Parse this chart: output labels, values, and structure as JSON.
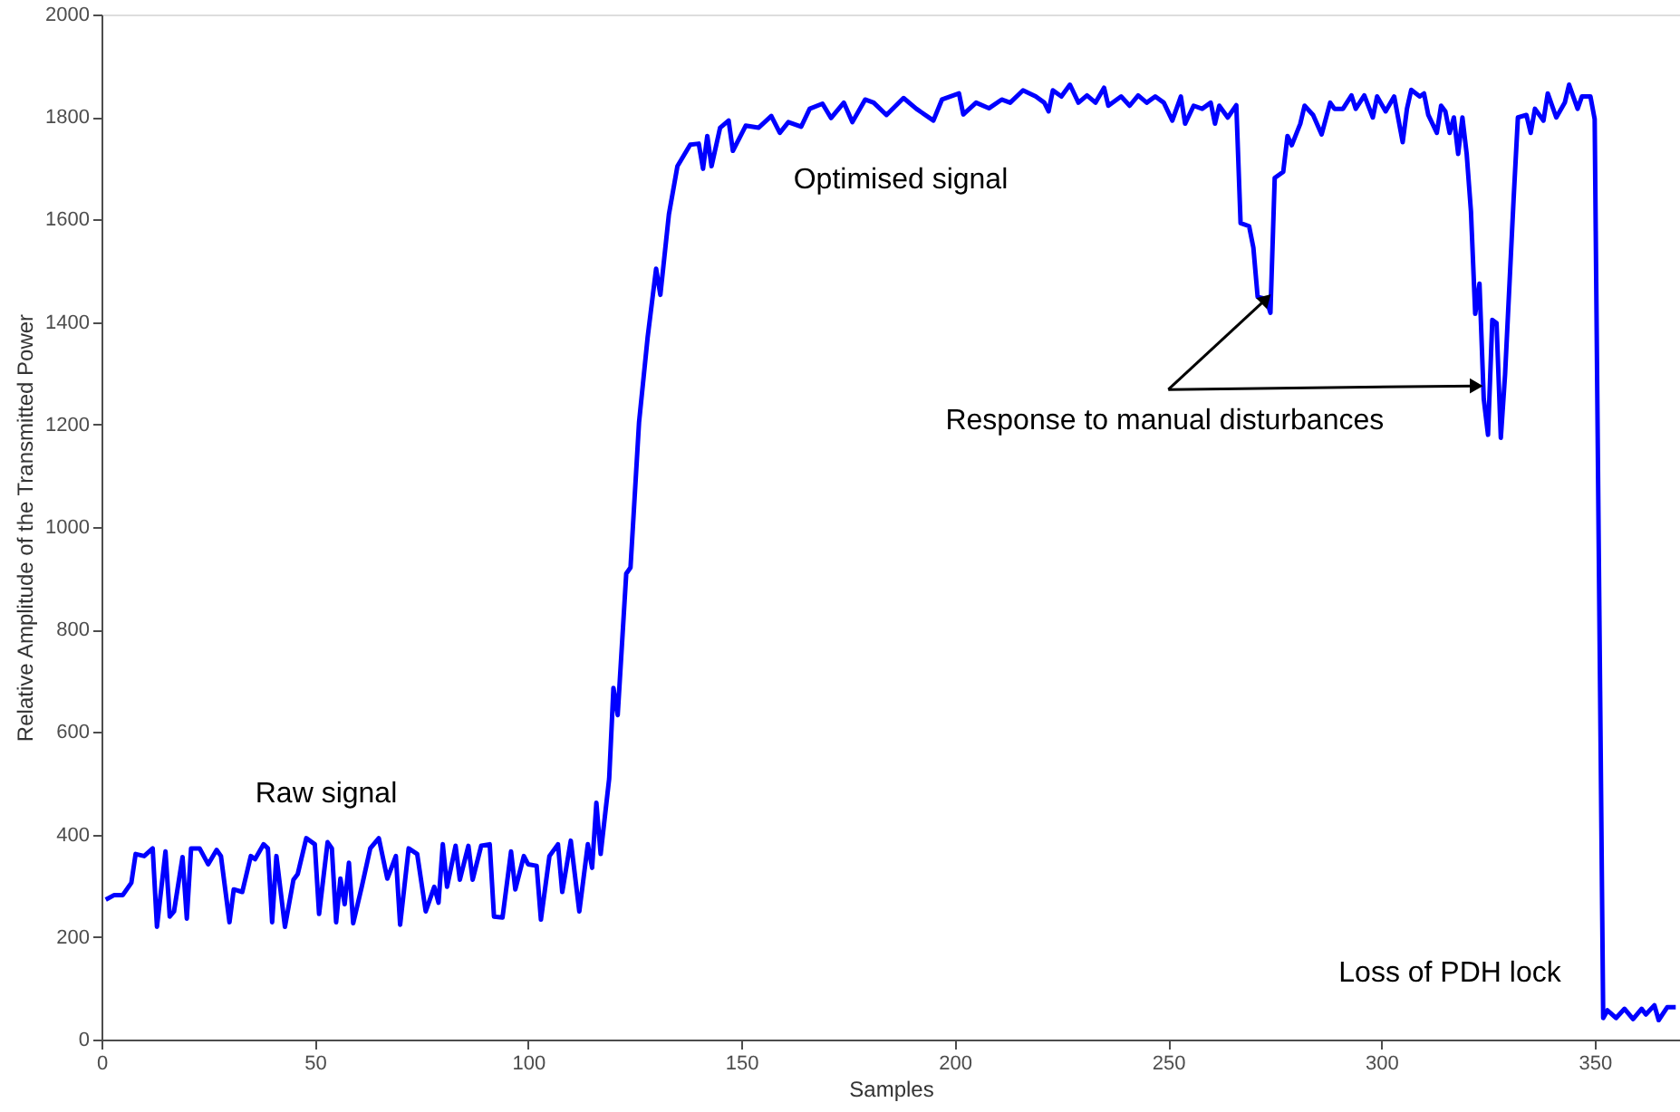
{
  "chart_data": {
    "type": "line",
    "xlabel": "Samples",
    "ylabel": "Relative Amplitude of the Transmitted Power",
    "xlim": [
      0,
      370
    ],
    "ylim": [
      0,
      2000
    ],
    "xticks": [
      0,
      50,
      100,
      150,
      200,
      250,
      300,
      350
    ],
    "yticks": [
      0,
      200,
      400,
      600,
      800,
      1000,
      1200,
      1400,
      1600,
      1800,
      2000
    ],
    "grid": false,
    "marker": "none",
    "line_style": "solid",
    "series": [
      {
        "color": "#0000ff",
        "x": [
          1,
          3,
          5,
          7,
          8,
          10,
          12,
          13,
          15,
          16,
          17,
          19,
          20,
          21,
          23,
          25,
          27,
          28,
          30,
          31,
          33,
          35,
          36,
          38,
          39,
          40,
          41,
          43,
          45,
          46,
          48,
          50,
          51,
          53,
          54,
          55,
          56,
          57,
          58,
          59,
          61,
          63,
          65,
          67,
          69,
          70,
          72,
          74,
          76,
          78,
          79,
          80,
          81,
          83,
          84,
          86,
          87,
          89,
          91,
          92,
          94,
          96,
          97,
          99,
          100,
          102,
          103,
          105,
          107,
          108,
          110,
          112,
          114,
          115,
          116,
          117,
          119,
          120,
          121,
          123,
          124,
          126,
          128,
          130,
          131,
          133,
          135,
          138,
          140,
          141,
          142,
          143,
          145,
          147,
          148,
          151,
          154,
          157,
          159,
          161,
          164,
          166,
          169,
          171,
          174,
          176,
          179,
          181,
          184,
          188,
          191,
          195,
          197,
          201,
          202,
          205,
          208,
          211,
          213,
          216,
          219,
          221,
          222,
          223,
          225,
          227,
          229,
          231,
          233,
          235,
          236,
          239,
          241,
          243,
          245,
          247,
          249,
          251,
          253,
          254,
          256,
          258,
          260,
          261,
          262,
          264,
          266,
          267,
          269,
          270,
          271,
          273,
          274,
          275,
          277,
          278,
          279,
          281,
          282,
          284,
          286,
          288,
          289,
          291,
          293,
          294,
          296,
          298,
          299,
          301,
          303,
          305,
          306,
          307,
          309,
          310,
          311,
          313,
          314,
          315,
          316,
          317,
          318,
          319,
          320,
          321,
          322,
          323,
          324,
          325,
          326,
          327,
          328,
          329,
          331,
          332,
          334,
          335,
          336,
          338,
          339,
          341,
          343,
          344,
          346,
          347,
          348,
          349,
          350,
          352,
          353,
          355,
          357,
          359,
          361,
          362,
          364,
          365,
          367,
          369
        ],
        "values": [
          273,
          282,
          282,
          306,
          362,
          358,
          373,
          220,
          367,
          240,
          250,
          356,
          236,
          373,
          373,
          342,
          370,
          358,
          229,
          293,
          288,
          358,
          352,
          381,
          373,
          229,
          358,
          220,
          312,
          323,
          393,
          381,
          245,
          385,
          373,
          229,
          314,
          264,
          345,
          227,
          298,
          373,
          393,
          314,
          358,
          224,
          373,
          362,
          250,
          298,
          267,
          381,
          298,
          378,
          312,
          378,
          312,
          378,
          381,
          240,
          238,
          367,
          293,
          358,
          342,
          339,
          234,
          358,
          381,
          288,
          388,
          250,
          381,
          335,
          462,
          362,
          509,
          686,
          633,
          909,
          921,
          1204,
          1369,
          1504,
          1453,
          1610,
          1704,
          1746,
          1748,
          1699,
          1763,
          1704,
          1779,
          1793,
          1734,
          1783,
          1779,
          1802,
          1769,
          1790,
          1781,
          1816,
          1826,
          1798,
          1828,
          1790,
          1834,
          1828,
          1804,
          1837,
          1816,
          1793,
          1834,
          1846,
          1805,
          1828,
          1817,
          1834,
          1828,
          1852,
          1840,
          1828,
          1811,
          1852,
          1840,
          1863,
          1828,
          1842,
          1828,
          1857,
          1822,
          1840,
          1822,
          1842,
          1828,
          1840,
          1828,
          1793,
          1840,
          1787,
          1822,
          1816,
          1828,
          1787,
          1822,
          1799,
          1823,
          1593,
          1587,
          1545,
          1449,
          1445,
          1418,
          1681,
          1693,
          1763,
          1745,
          1787,
          1822,
          1804,
          1766,
          1828,
          1816,
          1816,
          1842,
          1816,
          1842,
          1799,
          1840,
          1811,
          1840,
          1751,
          1816,
          1853,
          1840,
          1846,
          1804,
          1769,
          1822,
          1811,
          1769,
          1799,
          1728,
          1799,
          1728,
          1616,
          1416,
          1475,
          1250,
          1180,
          1404,
          1398,
          1174,
          1298,
          1640,
          1799,
          1804,
          1769,
          1816,
          1793,
          1846,
          1799,
          1828,
          1863,
          1816,
          1840,
          1840,
          1840,
          1796,
          42,
          57,
          42,
          60,
          40,
          60,
          49,
          67,
          38,
          63,
          63
        ]
      }
    ],
    "annotations": [
      "Raw signal",
      "Optimised signal",
      {
        "text": "Response to manual disturbances",
        "x": 273,
        "y": 1445
      },
      "Loss of PDH lock"
    ]
  }
}
